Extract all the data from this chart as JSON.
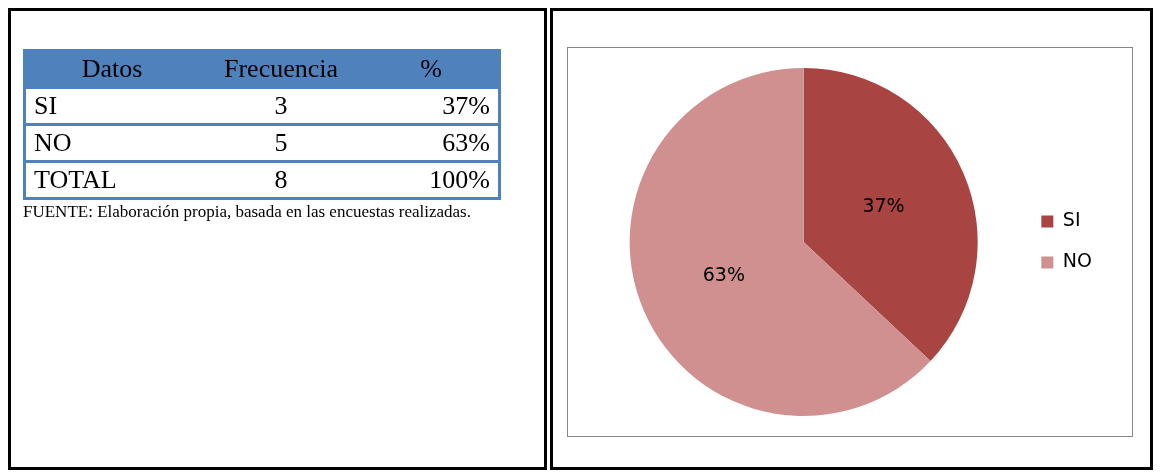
{
  "chart_data": [
    {
      "type": "other",
      "annotations": [
        "Datos",
        "Frecuencia",
        "%",
        "SI",
        "3",
        "37%",
        "NO",
        "5",
        "63%",
        "TOTAL",
        "8",
        "100%",
        "FUENTE: Elaboración propia, basada en las encuestas realizadas."
      ]
    },
    {
      "type": "pie",
      "categories": [
        "SI",
        "NO"
      ],
      "values": [
        37,
        63
      ],
      "colors": [
        "#a84442",
        "#d09090"
      ],
      "data_labels": true,
      "value_labels": [
        "37%",
        "63%"
      ],
      "legend": "right"
    }
  ]
}
